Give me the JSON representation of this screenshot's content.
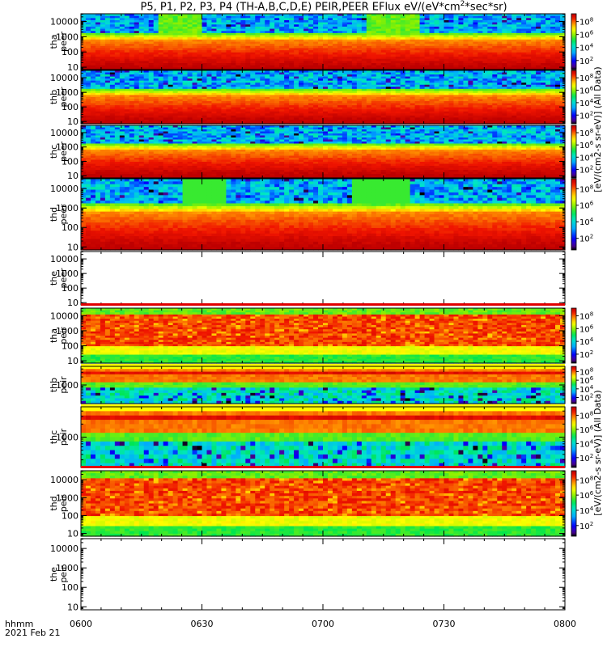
{
  "title": "P5, P1, P2, P3, P4 (TH-A,B,C,D,E) PEIR,PEER EFlux eV/(eV*cm",
  "title_sup": "2",
  "title_tail": "*sec*sr)",
  "colorbar_label_top": "[eV/(cm2-s sr-eV)] (All Data)",
  "colorbar_label_bottom": "[eV/(cm2-s sr-eV)] (All Data)",
  "xaxis": {
    "row1_label": "hhmm",
    "row2_label": "2021 Feb 21",
    "ticks": [
      "0600",
      "0630",
      "0700",
      "0730",
      "0800"
    ]
  },
  "chart_data": {
    "type": "heatmap",
    "title": "P5, P1, P2, P3, P4 (TH-A,B,C,D,E) PEIR,PEER EFlux eV/(eV*cm2*sec*sr)",
    "x_range_hhmm": [
      "0600",
      "0800"
    ],
    "x_ticks": [
      "0600",
      "0630",
      "0700",
      "0730",
      "0800"
    ],
    "colorbar": {
      "scale": "log",
      "range": [
        1,
        100000000
      ],
      "tick_labels": [
        "10^2",
        "10^4",
        "10^6",
        "10^8"
      ]
    },
    "panels": [
      {
        "probe": "tha",
        "species": "peer",
        "ylabel1": "tha",
        "ylabel2": "peer",
        "yticks": [
          "10",
          "100",
          "1000",
          "10000"
        ],
        "ylim": [
          7,
          32000
        ],
        "has_data": true,
        "kind": "electron"
      },
      {
        "probe": "thb",
        "species": "peer",
        "ylabel1": "thb",
        "ylabel2": "peer",
        "yticks": [
          "10",
          "100",
          "1000",
          "10000"
        ],
        "ylim": [
          7,
          32000
        ],
        "has_data": true,
        "kind": "electron"
      },
      {
        "probe": "thc",
        "species": "peer",
        "ylabel1": "thc",
        "ylabel2": "peer",
        "yticks": [
          "10",
          "100",
          "1000",
          "10000"
        ],
        "ylim": [
          7,
          32000
        ],
        "has_data": true,
        "kind": "electron"
      },
      {
        "probe": "thd",
        "species": "peer",
        "ylabel1": "thd",
        "ylabel2": "peer",
        "yticks": [
          "10",
          "100",
          "1000",
          "10000"
        ],
        "ylim": [
          7,
          32000
        ],
        "has_data": true,
        "kind": "electron"
      },
      {
        "probe": "the",
        "species": "peer",
        "ylabel1": "the",
        "ylabel2": "peer",
        "yticks": [
          "10",
          "100",
          "1000",
          "10000"
        ],
        "ylim": [
          7,
          32000
        ],
        "has_data": false,
        "kind": "empty"
      },
      {
        "probe": "tha",
        "species": "peir",
        "ylabel1": "tha",
        "ylabel2": "peir",
        "yticks": [
          "10",
          "100",
          "1000",
          "10000"
        ],
        "ylim": [
          7,
          32000
        ],
        "has_data": true,
        "kind": "ion"
      },
      {
        "probe": "thb",
        "species": "peir",
        "ylabel1": "thb",
        "ylabel2": "peir",
        "yticks": [
          "1000"
        ],
        "ylim": [
          200,
          5000
        ],
        "has_data": true,
        "kind": "ion_narrow"
      },
      {
        "probe": "thc",
        "species": "peir",
        "ylabel1": "thc",
        "ylabel2": "peir",
        "yticks": [
          "1000"
        ],
        "ylim": [
          200,
          5000
        ],
        "has_data": true,
        "kind": "ion_narrow"
      },
      {
        "probe": "thd",
        "species": "peir",
        "ylabel1": "thd",
        "ylabel2": "peir",
        "yticks": [
          "10",
          "100",
          "1000",
          "10000"
        ],
        "ylim": [
          7,
          32000
        ],
        "has_data": true,
        "kind": "ion"
      },
      {
        "probe": "the",
        "species": "peir",
        "ylabel1": "the",
        "ylabel2": "peir",
        "yticks": [
          "10",
          "100",
          "1000",
          "10000"
        ],
        "ylim": [
          7,
          32000
        ],
        "has_data": false,
        "kind": "empty"
      }
    ],
    "colorbars": [
      {
        "for": "tha peer",
        "ticks": [
          "10^2",
          "10^4",
          "10^6",
          "10^8"
        ]
      },
      {
        "for": "thb peer",
        "ticks": [
          "10^2",
          "10^4",
          "10^6",
          "10^8"
        ]
      },
      {
        "for": "thc peer",
        "ticks": [
          "10^2",
          "10^4",
          "10^6",
          "10^8"
        ]
      },
      {
        "for": "thd peer",
        "ticks": [
          "10^2",
          "10^4",
          "10^6",
          "10^8"
        ]
      },
      {
        "for": "tha peir",
        "ticks": [
          "10^2",
          "10^4",
          "10^6",
          "10^8"
        ]
      },
      {
        "for": "thb peir",
        "ticks": [
          "10^2",
          "10^4",
          "10^6",
          "10^8"
        ]
      },
      {
        "for": "thc peir",
        "ticks": [
          "10^2",
          "10^4",
          "10^6",
          "10^8"
        ]
      },
      {
        "for": "thd peir",
        "ticks": [
          "10^2",
          "10^4",
          "10^6",
          "10^8"
        ]
      }
    ]
  }
}
